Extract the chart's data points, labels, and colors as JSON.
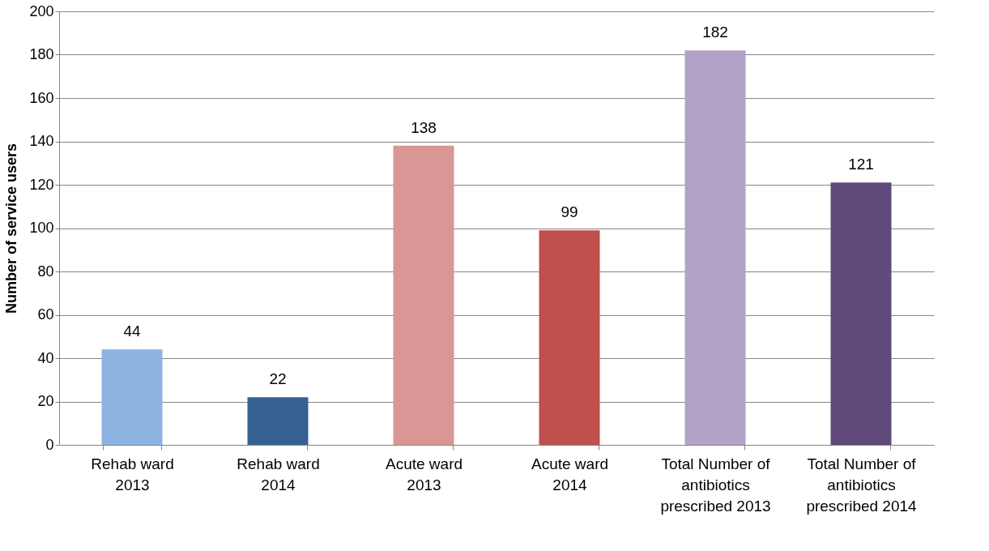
{
  "chart_data": {
    "type": "bar",
    "ylabel": "Number of service users",
    "categories": [
      "Rehab ward 2013",
      "Rehab ward 2014",
      "Acute ward 2013",
      "Acute ward 2014",
      "Total Number of antibiotics prescribed 2013",
      "Total Number of antibiotics prescribed 2014"
    ],
    "values": [
      44,
      22,
      138,
      99,
      182,
      121
    ],
    "colors": [
      "#8db3e2",
      "#376092",
      "#d99694",
      "#c0504d",
      "#b3a2c7",
      "#604a7b"
    ],
    "ylim": [
      0,
      200
    ],
    "yticks": [
      0,
      20,
      40,
      60,
      80,
      100,
      120,
      140,
      160,
      180,
      200
    ],
    "grid": "y",
    "data_labels": true
  }
}
